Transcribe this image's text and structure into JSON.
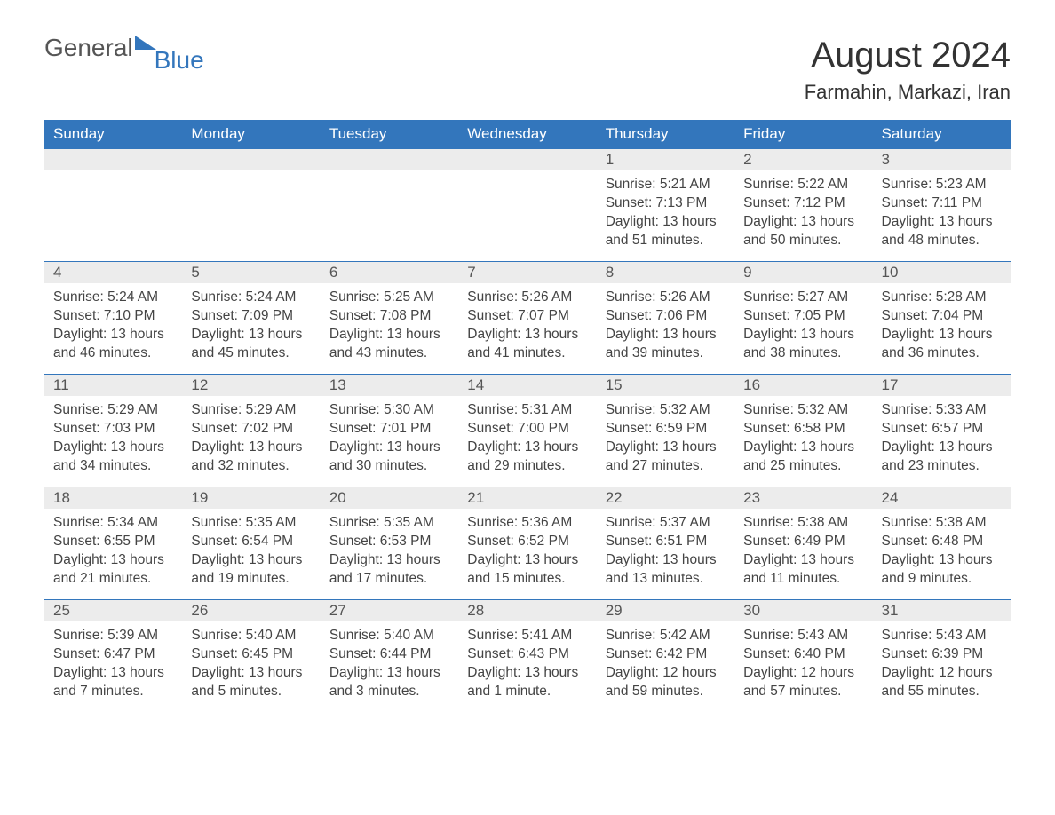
{
  "logo": {
    "general": "General",
    "blue": "Blue",
    "flag_color": "#3376bc"
  },
  "title": "August 2024",
  "location": "Farmahin, Markazi, Iran",
  "colors": {
    "header_bg": "#3376bc",
    "header_text": "#ffffff",
    "daybar_bg": "#ececec",
    "row_border": "#3376bc",
    "text": "#444444"
  },
  "weekdays": [
    "Sunday",
    "Monday",
    "Tuesday",
    "Wednesday",
    "Thursday",
    "Friday",
    "Saturday"
  ],
  "weeks": [
    [
      null,
      null,
      null,
      null,
      {
        "day": "1",
        "sunrise": "Sunrise: 5:21 AM",
        "sunset": "Sunset: 7:13 PM",
        "daylight": "Daylight: 13 hours and 51 minutes."
      },
      {
        "day": "2",
        "sunrise": "Sunrise: 5:22 AM",
        "sunset": "Sunset: 7:12 PM",
        "daylight": "Daylight: 13 hours and 50 minutes."
      },
      {
        "day": "3",
        "sunrise": "Sunrise: 5:23 AM",
        "sunset": "Sunset: 7:11 PM",
        "daylight": "Daylight: 13 hours and 48 minutes."
      }
    ],
    [
      {
        "day": "4",
        "sunrise": "Sunrise: 5:24 AM",
        "sunset": "Sunset: 7:10 PM",
        "daylight": "Daylight: 13 hours and 46 minutes."
      },
      {
        "day": "5",
        "sunrise": "Sunrise: 5:24 AM",
        "sunset": "Sunset: 7:09 PM",
        "daylight": "Daylight: 13 hours and 45 minutes."
      },
      {
        "day": "6",
        "sunrise": "Sunrise: 5:25 AM",
        "sunset": "Sunset: 7:08 PM",
        "daylight": "Daylight: 13 hours and 43 minutes."
      },
      {
        "day": "7",
        "sunrise": "Sunrise: 5:26 AM",
        "sunset": "Sunset: 7:07 PM",
        "daylight": "Daylight: 13 hours and 41 minutes."
      },
      {
        "day": "8",
        "sunrise": "Sunrise: 5:26 AM",
        "sunset": "Sunset: 7:06 PM",
        "daylight": "Daylight: 13 hours and 39 minutes."
      },
      {
        "day": "9",
        "sunrise": "Sunrise: 5:27 AM",
        "sunset": "Sunset: 7:05 PM",
        "daylight": "Daylight: 13 hours and 38 minutes."
      },
      {
        "day": "10",
        "sunrise": "Sunrise: 5:28 AM",
        "sunset": "Sunset: 7:04 PM",
        "daylight": "Daylight: 13 hours and 36 minutes."
      }
    ],
    [
      {
        "day": "11",
        "sunrise": "Sunrise: 5:29 AM",
        "sunset": "Sunset: 7:03 PM",
        "daylight": "Daylight: 13 hours and 34 minutes."
      },
      {
        "day": "12",
        "sunrise": "Sunrise: 5:29 AM",
        "sunset": "Sunset: 7:02 PM",
        "daylight": "Daylight: 13 hours and 32 minutes."
      },
      {
        "day": "13",
        "sunrise": "Sunrise: 5:30 AM",
        "sunset": "Sunset: 7:01 PM",
        "daylight": "Daylight: 13 hours and 30 minutes."
      },
      {
        "day": "14",
        "sunrise": "Sunrise: 5:31 AM",
        "sunset": "Sunset: 7:00 PM",
        "daylight": "Daylight: 13 hours and 29 minutes."
      },
      {
        "day": "15",
        "sunrise": "Sunrise: 5:32 AM",
        "sunset": "Sunset: 6:59 PM",
        "daylight": "Daylight: 13 hours and 27 minutes."
      },
      {
        "day": "16",
        "sunrise": "Sunrise: 5:32 AM",
        "sunset": "Sunset: 6:58 PM",
        "daylight": "Daylight: 13 hours and 25 minutes."
      },
      {
        "day": "17",
        "sunrise": "Sunrise: 5:33 AM",
        "sunset": "Sunset: 6:57 PM",
        "daylight": "Daylight: 13 hours and 23 minutes."
      }
    ],
    [
      {
        "day": "18",
        "sunrise": "Sunrise: 5:34 AM",
        "sunset": "Sunset: 6:55 PM",
        "daylight": "Daylight: 13 hours and 21 minutes."
      },
      {
        "day": "19",
        "sunrise": "Sunrise: 5:35 AM",
        "sunset": "Sunset: 6:54 PM",
        "daylight": "Daylight: 13 hours and 19 minutes."
      },
      {
        "day": "20",
        "sunrise": "Sunrise: 5:35 AM",
        "sunset": "Sunset: 6:53 PM",
        "daylight": "Daylight: 13 hours and 17 minutes."
      },
      {
        "day": "21",
        "sunrise": "Sunrise: 5:36 AM",
        "sunset": "Sunset: 6:52 PM",
        "daylight": "Daylight: 13 hours and 15 minutes."
      },
      {
        "day": "22",
        "sunrise": "Sunrise: 5:37 AM",
        "sunset": "Sunset: 6:51 PM",
        "daylight": "Daylight: 13 hours and 13 minutes."
      },
      {
        "day": "23",
        "sunrise": "Sunrise: 5:38 AM",
        "sunset": "Sunset: 6:49 PM",
        "daylight": "Daylight: 13 hours and 11 minutes."
      },
      {
        "day": "24",
        "sunrise": "Sunrise: 5:38 AM",
        "sunset": "Sunset: 6:48 PM",
        "daylight": "Daylight: 13 hours and 9 minutes."
      }
    ],
    [
      {
        "day": "25",
        "sunrise": "Sunrise: 5:39 AM",
        "sunset": "Sunset: 6:47 PM",
        "daylight": "Daylight: 13 hours and 7 minutes."
      },
      {
        "day": "26",
        "sunrise": "Sunrise: 5:40 AM",
        "sunset": "Sunset: 6:45 PM",
        "daylight": "Daylight: 13 hours and 5 minutes."
      },
      {
        "day": "27",
        "sunrise": "Sunrise: 5:40 AM",
        "sunset": "Sunset: 6:44 PM",
        "daylight": "Daylight: 13 hours and 3 minutes."
      },
      {
        "day": "28",
        "sunrise": "Sunrise: 5:41 AM",
        "sunset": "Sunset: 6:43 PM",
        "daylight": "Daylight: 13 hours and 1 minute."
      },
      {
        "day": "29",
        "sunrise": "Sunrise: 5:42 AM",
        "sunset": "Sunset: 6:42 PM",
        "daylight": "Daylight: 12 hours and 59 minutes."
      },
      {
        "day": "30",
        "sunrise": "Sunrise: 5:43 AM",
        "sunset": "Sunset: 6:40 PM",
        "daylight": "Daylight: 12 hours and 57 minutes."
      },
      {
        "day": "31",
        "sunrise": "Sunrise: 5:43 AM",
        "sunset": "Sunset: 6:39 PM",
        "daylight": "Daylight: 12 hours and 55 minutes."
      }
    ]
  ]
}
